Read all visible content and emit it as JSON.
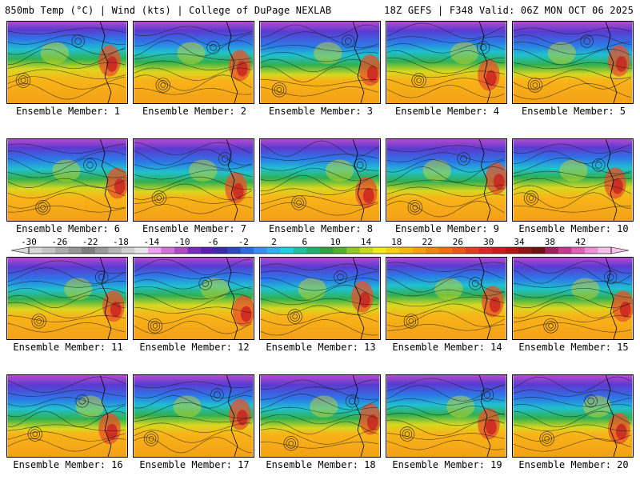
{
  "header": {
    "left": "850mb Temp (°C) | Wind (kts) | College of DuPage NEXLAB",
    "right": "18Z GEFS | F348 Valid: 06Z MON OCT 06 2025"
  },
  "panels": [
    {
      "label": "Ensemble Member: 1"
    },
    {
      "label": "Ensemble Member: 2"
    },
    {
      "label": "Ensemble Member: 3"
    },
    {
      "label": "Ensemble Member: 4"
    },
    {
      "label": "Ensemble Member: 5"
    },
    {
      "label": "Ensemble Member: 6"
    },
    {
      "label": "Ensemble Member: 7"
    },
    {
      "label": "Ensemble Member: 8"
    },
    {
      "label": "Ensemble Member: 9"
    },
    {
      "label": "Ensemble Member: 10"
    },
    {
      "label": "Ensemble Member: 11"
    },
    {
      "label": "Ensemble Member: 12"
    },
    {
      "label": "Ensemble Member: 13"
    },
    {
      "label": "Ensemble Member: 14"
    },
    {
      "label": "Ensemble Member: 15"
    },
    {
      "label": "Ensemble Member: 16"
    },
    {
      "label": "Ensemble Member: 17"
    },
    {
      "label": "Ensemble Member: 18"
    },
    {
      "label": "Ensemble Member: 19"
    },
    {
      "label": "Ensemble Member: 20"
    }
  ],
  "colorbar": {
    "labels": [
      "-30",
      "-26",
      "-22",
      "-18",
      "-14",
      "-10",
      "-6",
      "-2",
      "2",
      "6",
      "10",
      "14",
      "18",
      "22",
      "26",
      "30",
      "34",
      "38",
      "42"
    ],
    "colors": [
      "#d8d8d8",
      "#c4c4c4",
      "#acacac",
      "#969696",
      "#7e7e7e",
      "#9a9a9a",
      "#b4b4b4",
      "#cfcfcf",
      "#e6e6e6",
      "#f0a0f0",
      "#d070d8",
      "#b048c8",
      "#7a2cc0",
      "#5a1eb4",
      "#3a2ca8",
      "#2c48c0",
      "#2c6ce0",
      "#3a90f0",
      "#30b0f0",
      "#20d0e0",
      "#20c0a0",
      "#20b070",
      "#30a040",
      "#50b030",
      "#90c828",
      "#c8d820",
      "#f0e820",
      "#f8d018",
      "#f8b810",
      "#f8a010",
      "#f08810",
      "#f07010",
      "#e85818",
      "#e04020",
      "#d82828",
      "#c81e1e",
      "#b01818",
      "#901414",
      "#701010",
      "#a02060",
      "#c83890",
      "#e060b8",
      "#f090d8",
      "#f8c0e8"
    ]
  }
}
